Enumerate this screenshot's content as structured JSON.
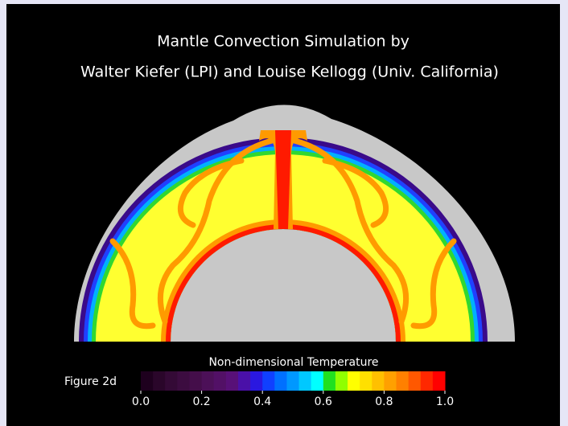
{
  "figure": {
    "title_lines": [
      "Mantle Convection Simulation by",
      "Walter Kiefer (LPI) and Louise Kellogg (Univ. California)"
    ],
    "figure_label": "Figure 2d",
    "colorbar": {
      "label": "Non-dimensional Temperature",
      "range": [
        0,
        1
      ],
      "colors": [
        "#1e001e",
        "#2a062a",
        "#340a36",
        "#3c0c40",
        "#440e4a",
        "#4c1058",
        "#521066",
        "#581078",
        "#4a10a8",
        "#2a18e0",
        "#1040ff",
        "#0070ff",
        "#0098ff",
        "#00c8ff",
        "#00ffff",
        "#20e020",
        "#90ff00",
        "#ffff00",
        "#ffe000",
        "#ffc000",
        "#ffa000",
        "#ff8000",
        "#ff5800",
        "#ff2800",
        "#ff0000"
      ],
      "ticks": [
        {
          "value": 0,
          "label": "0.0"
        },
        {
          "value": 0.2,
          "label": "0.2"
        },
        {
          "value": 0.4,
          "label": "0.4"
        },
        {
          "value": 0.6,
          "label": "0.6"
        },
        {
          "value": 0.8,
          "label": "0.8"
        },
        {
          "value": 1,
          "label": "1.0"
        }
      ]
    }
  }
}
